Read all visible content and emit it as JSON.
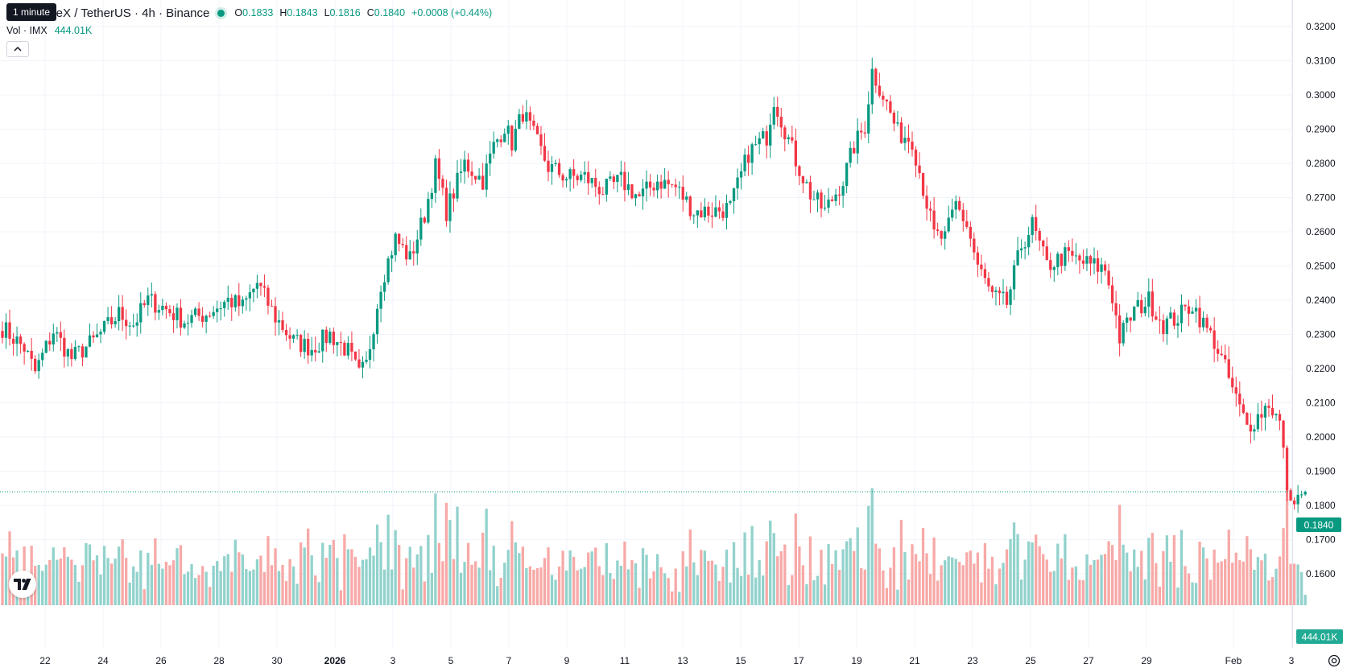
{
  "header": {
    "symbol": "ImmutableX / TetherUS · 4h · Binance",
    "tooltip": "1 minute",
    "ohlc": {
      "open_label": "O",
      "open": "0.1833",
      "high_label": "H",
      "high": "0.1843",
      "low_label": "L",
      "low": "0.1816",
      "close_label": "C",
      "close": "0.1840",
      "change": "+0.0008 (+0.44%)"
    },
    "volume_label": "Vol · IMX",
    "volume_value": "444.01K"
  },
  "price_badge": "0.1840",
  "volume_badge": "444.01K",
  "colors": {
    "up": "#089981",
    "down": "#f23645",
    "up_volume": "#92d2cc",
    "down_volume": "#f7a9a7",
    "grid": "#f0f3fa"
  },
  "icons": [
    "chevron-up-icon",
    "tradingview-logo-icon",
    "settings-icon"
  ],
  "chart_data": {
    "type": "candlestick",
    "y_axis": {
      "range": [
        0.155,
        0.3225
      ],
      "ticks": [
        "0.3200",
        "0.3100",
        "0.3000",
        "0.2900",
        "0.2800",
        "0.2700",
        "0.2600",
        "0.2500",
        "0.2400",
        "0.2300",
        "0.2200",
        "0.2100",
        "0.2000",
        "0.1900",
        "0.1800",
        "0.1700",
        "0.1600"
      ]
    },
    "x_axis": {
      "ticks": [
        "22",
        "24",
        "26",
        "28",
        "30",
        "2026",
        "3",
        "5",
        "7",
        "9",
        "11",
        "13",
        "15",
        "17",
        "19",
        "21",
        "23",
        "25",
        "27",
        "29",
        "Feb",
        "3"
      ]
    },
    "anchors": [
      [
        0,
        0.232
      ],
      [
        6,
        0.226
      ],
      [
        9,
        0.219
      ],
      [
        14,
        0.231
      ],
      [
        19,
        0.223
      ],
      [
        25,
        0.228
      ],
      [
        32,
        0.236
      ],
      [
        36,
        0.233
      ],
      [
        40,
        0.24
      ],
      [
        44,
        0.238
      ],
      [
        50,
        0.234
      ],
      [
        56,
        0.236
      ],
      [
        62,
        0.24
      ],
      [
        66,
        0.238
      ],
      [
        70,
        0.245
      ],
      [
        75,
        0.235
      ],
      [
        80,
        0.228
      ],
      [
        85,
        0.226
      ],
      [
        90,
        0.23
      ],
      [
        95,
        0.225
      ],
      [
        98,
        0.218
      ],
      [
        100,
        0.221
      ],
      [
        104,
        0.245
      ],
      [
        108,
        0.258
      ],
      [
        112,
        0.252
      ],
      [
        116,
        0.265
      ],
      [
        119,
        0.279
      ],
      [
        122,
        0.266
      ],
      [
        127,
        0.28
      ],
      [
        132,
        0.275
      ],
      [
        135,
        0.285
      ],
      [
        138,
        0.291
      ],
      [
        140,
        0.286
      ],
      [
        143,
        0.295
      ],
      [
        146,
        0.288
      ],
      [
        150,
        0.279
      ],
      [
        155,
        0.276
      ],
      [
        160,
        0.276
      ],
      [
        165,
        0.272
      ],
      [
        170,
        0.275
      ],
      [
        175,
        0.27
      ],
      [
        180,
        0.275
      ],
      [
        185,
        0.273
      ],
      [
        190,
        0.266
      ],
      [
        195,
        0.266
      ],
      [
        200,
        0.267
      ],
      [
        205,
        0.283
      ],
      [
        210,
        0.288
      ],
      [
        212,
        0.299
      ],
      [
        215,
        0.29
      ],
      [
        218,
        0.281
      ],
      [
        222,
        0.271
      ],
      [
        226,
        0.266
      ],
      [
        231,
        0.275
      ],
      [
        234,
        0.285
      ],
      [
        237,
        0.291
      ],
      [
        239,
        0.307
      ],
      [
        242,
        0.3
      ],
      [
        246,
        0.289
      ],
      [
        250,
        0.287
      ],
      [
        253,
        0.273
      ],
      [
        256,
        0.259
      ],
      [
        259,
        0.258
      ],
      [
        262,
        0.268
      ],
      [
        265,
        0.262
      ],
      [
        268,
        0.25
      ],
      [
        272,
        0.241
      ],
      [
        276,
        0.239
      ],
      [
        280,
        0.256
      ],
      [
        283,
        0.262
      ],
      [
        287,
        0.25
      ],
      [
        292,
        0.253
      ],
      [
        297,
        0.251
      ],
      [
        303,
        0.249
      ],
      [
        305,
        0.241
      ],
      [
        307,
        0.229
      ],
      [
        311,
        0.237
      ],
      [
        315,
        0.24
      ],
      [
        319,
        0.233
      ],
      [
        323,
        0.235
      ],
      [
        327,
        0.239
      ],
      [
        330,
        0.233
      ],
      [
        333,
        0.228
      ],
      [
        336,
        0.22
      ],
      [
        339,
        0.211
      ],
      [
        342,
        0.203
      ],
      [
        345,
        0.206
      ],
      [
        348,
        0.21
      ],
      [
        351,
        0.204
      ],
      [
        353,
        0.186
      ],
      [
        354,
        0.179
      ],
      [
        355,
        0.183
      ],
      [
        357,
        0.1832
      ],
      [
        358,
        0.184
      ]
    ],
    "last_close": 0.184,
    "last_volume": "444.01K"
  }
}
